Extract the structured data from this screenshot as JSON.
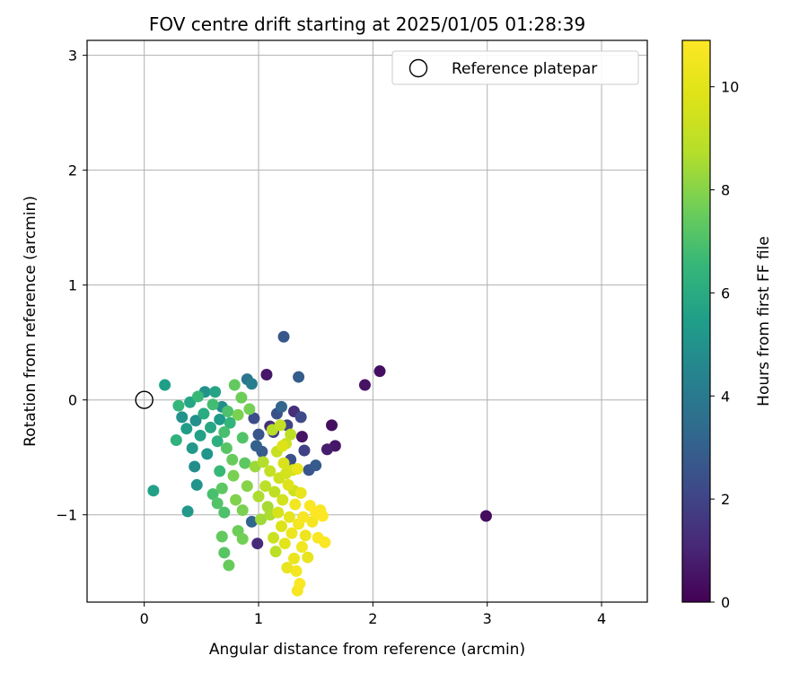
{
  "chart_data": {
    "type": "scatter",
    "title": "FOV centre drift starting at 2025/01/05 01:28:39",
    "xlabel": "Angular distance from reference (arcmin)",
    "ylabel": "Rotation from reference (arcmin)",
    "xlim": [
      -0.5,
      4.4
    ],
    "ylim": [
      -1.76,
      3.13
    ],
    "x_ticks": [
      0,
      1,
      2,
      3,
      4
    ],
    "y_ticks": [
      -1,
      0,
      1,
      2,
      3
    ],
    "grid": true,
    "legend": {
      "placement": "top-right",
      "entries": [
        "Reference platepar"
      ]
    },
    "reference_point": {
      "name": "Reference platepar",
      "x": 0.0,
      "y": 0.0,
      "marker": "open-circle"
    },
    "colorbar": {
      "label": "Hours from first FF file",
      "colormap": "viridis",
      "range": [
        0,
        10.9
      ],
      "ticks": [
        0,
        2,
        4,
        6,
        8,
        10
      ]
    },
    "points": [
      {
        "x": 0.18,
        "y": 0.13,
        "h": 5.5
      },
      {
        "x": 0.28,
        "y": -0.35,
        "h": 6.3
      },
      {
        "x": 0.3,
        "y": -0.05,
        "h": 6.5
      },
      {
        "x": 0.33,
        "y": -0.15,
        "h": 5.0
      },
      {
        "x": 0.37,
        "y": -0.25,
        "h": 5.4
      },
      {
        "x": 0.4,
        "y": -0.02,
        "h": 5.8
      },
      {
        "x": 0.42,
        "y": -0.42,
        "h": 5.2
      },
      {
        "x": 0.45,
        "y": -0.18,
        "h": 4.9
      },
      {
        "x": 0.47,
        "y": 0.03,
        "h": 6.6
      },
      {
        "x": 0.49,
        "y": -0.31,
        "h": 5.6
      },
      {
        "x": 0.52,
        "y": -0.12,
        "h": 6.0
      },
      {
        "x": 0.53,
        "y": 0.07,
        "h": 5.0
      },
      {
        "x": 0.55,
        "y": -0.47,
        "h": 5.1
      },
      {
        "x": 0.58,
        "y": -0.24,
        "h": 5.8
      },
      {
        "x": 0.6,
        "y": -0.04,
        "h": 6.8
      },
      {
        "x": 0.62,
        "y": 0.07,
        "h": 5.7
      },
      {
        "x": 0.64,
        "y": -0.36,
        "h": 6.2
      },
      {
        "x": 0.66,
        "y": -0.17,
        "h": 5.3
      },
      {
        "x": 0.68,
        "y": -0.06,
        "h": 4.8
      },
      {
        "x": 0.7,
        "y": -0.28,
        "h": 6.9
      },
      {
        "x": 0.72,
        "y": -0.42,
        "h": 7.2
      },
      {
        "x": 0.73,
        "y": -0.1,
        "h": 7.0
      },
      {
        "x": 0.75,
        "y": -0.2,
        "h": 6.4
      },
      {
        "x": 0.77,
        "y": -0.52,
        "h": 7.5
      },
      {
        "x": 0.79,
        "y": 0.13,
        "h": 7.4
      },
      {
        "x": 0.82,
        "y": -0.13,
        "h": 7.8
      },
      {
        "x": 0.85,
        "y": 0.02,
        "h": 7.6
      },
      {
        "x": 0.86,
        "y": -0.33,
        "h": 7.1
      },
      {
        "x": 0.88,
        "y": -0.55,
        "h": 7.3
      },
      {
        "x": 0.9,
        "y": 0.18,
        "h": 3.8
      },
      {
        "x": 0.92,
        "y": -0.08,
        "h": 7.7
      },
      {
        "x": 0.94,
        "y": 0.14,
        "h": 4.2
      },
      {
        "x": 0.96,
        "y": -0.16,
        "h": 2.3
      },
      {
        "x": 0.98,
        "y": -0.4,
        "h": 3.0
      },
      {
        "x": 1.0,
        "y": -0.3,
        "h": 2.6
      },
      {
        "x": 1.03,
        "y": -0.45,
        "h": 2.8
      },
      {
        "x": 1.07,
        "y": 0.22,
        "h": 0.6
      },
      {
        "x": 1.1,
        "y": -0.23,
        "h": 1.4
      },
      {
        "x": 1.13,
        "y": -0.28,
        "h": 1.8
      },
      {
        "x": 1.16,
        "y": -0.12,
        "h": 2.5
      },
      {
        "x": 1.2,
        "y": -0.06,
        "h": 3.2
      },
      {
        "x": 1.22,
        "y": 0.55,
        "h": 2.7
      },
      {
        "x": 1.25,
        "y": -0.22,
        "h": 2.0
      },
      {
        "x": 1.28,
        "y": -0.52,
        "h": 2.4
      },
      {
        "x": 1.31,
        "y": -0.1,
        "h": 1.3
      },
      {
        "x": 1.35,
        "y": 0.2,
        "h": 2.9
      },
      {
        "x": 1.37,
        "y": -0.15,
        "h": 2.2
      },
      {
        "x": 1.38,
        "y": -0.32,
        "h": 0.5
      },
      {
        "x": 1.4,
        "y": -0.44,
        "h": 1.9
      },
      {
        "x": 1.44,
        "y": -0.61,
        "h": 2.6
      },
      {
        "x": 1.5,
        "y": -0.57,
        "h": 2.8
      },
      {
        "x": 1.6,
        "y": -0.43,
        "h": 0.8
      },
      {
        "x": 1.64,
        "y": -0.22,
        "h": 0.4
      },
      {
        "x": 1.67,
        "y": -0.4,
        "h": 0.6
      },
      {
        "x": 1.93,
        "y": 0.13,
        "h": 0.5
      },
      {
        "x": 2.06,
        "y": 0.25,
        "h": 0.4
      },
      {
        "x": 2.99,
        "y": -1.01,
        "h": 0.3
      },
      {
        "x": 0.08,
        "y": -0.79,
        "h": 5.6
      },
      {
        "x": 0.38,
        "y": -0.97,
        "h": 5.2
      },
      {
        "x": 0.44,
        "y": -0.58,
        "h": 4.8
      },
      {
        "x": 0.46,
        "y": -0.74,
        "h": 5.1
      },
      {
        "x": 0.6,
        "y": -0.82,
        "h": 6.9
      },
      {
        "x": 0.64,
        "y": -0.9,
        "h": 7.1
      },
      {
        "x": 0.66,
        "y": -0.62,
        "h": 6.6
      },
      {
        "x": 0.68,
        "y": -0.77,
        "h": 7.3
      },
      {
        "x": 0.7,
        "y": -0.98,
        "h": 7.0
      },
      {
        "x": 0.68,
        "y": -1.19,
        "h": 7.4
      },
      {
        "x": 0.7,
        "y": -1.33,
        "h": 7.2
      },
      {
        "x": 0.74,
        "y": -1.44,
        "h": 7.5
      },
      {
        "x": 0.78,
        "y": -0.66,
        "h": 7.8
      },
      {
        "x": 0.8,
        "y": -0.87,
        "h": 7.9
      },
      {
        "x": 0.82,
        "y": -1.14,
        "h": 7.6
      },
      {
        "x": 0.86,
        "y": -1.21,
        "h": 7.7
      },
      {
        "x": 0.86,
        "y": -0.96,
        "h": 7.8
      },
      {
        "x": 0.9,
        "y": -0.75,
        "h": 8.0
      },
      {
        "x": 0.94,
        "y": -1.06,
        "h": 3.2
      },
      {
        "x": 0.97,
        "y": -0.58,
        "h": 8.3
      },
      {
        "x": 0.99,
        "y": -1.25,
        "h": 1.2
      },
      {
        "x": 1.0,
        "y": -0.84,
        "h": 8.6
      },
      {
        "x": 1.02,
        "y": -1.04,
        "h": 8.4
      },
      {
        "x": 1.04,
        "y": -0.54,
        "h": 8.7
      },
      {
        "x": 1.06,
        "y": -0.75,
        "h": 8.9
      },
      {
        "x": 1.08,
        "y": -0.93,
        "h": 8.5
      },
      {
        "x": 1.1,
        "y": -0.62,
        "h": 9.1
      },
      {
        "x": 1.12,
        "y": -0.26,
        "h": 8.8
      },
      {
        "x": 1.13,
        "y": -1.2,
        "h": 9.3
      },
      {
        "x": 1.14,
        "y": -0.8,
        "h": 9.0
      },
      {
        "x": 1.15,
        "y": -1.32,
        "h": 8.9
      },
      {
        "x": 1.16,
        "y": -0.45,
        "h": 9.2
      },
      {
        "x": 1.17,
        "y": -0.98,
        "h": 9.6
      },
      {
        "x": 1.18,
        "y": -0.68,
        "h": 9.4
      },
      {
        "x": 1.19,
        "y": -0.22,
        "h": 9.1
      },
      {
        "x": 1.2,
        "y": -1.1,
        "h": 9.8
      },
      {
        "x": 1.21,
        "y": -0.87,
        "h": 9.5
      },
      {
        "x": 1.22,
        "y": -0.55,
        "h": 9.7
      },
      {
        "x": 1.23,
        "y": -1.25,
        "h": 10.0
      },
      {
        "x": 1.24,
        "y": -0.38,
        "h": 9.3
      },
      {
        "x": 1.25,
        "y": -1.46,
        "h": 10.2
      },
      {
        "x": 1.26,
        "y": -0.74,
        "h": 9.9
      },
      {
        "x": 1.27,
        "y": -1.02,
        "h": 10.1
      },
      {
        "x": 1.28,
        "y": -0.3,
        "h": 9.0
      },
      {
        "x": 1.29,
        "y": -1.16,
        "h": 10.4
      },
      {
        "x": 1.3,
        "y": -0.61,
        "h": 9.6
      },
      {
        "x": 1.31,
        "y": -1.38,
        "h": 10.3
      },
      {
        "x": 1.32,
        "y": -0.91,
        "h": 10.5
      },
      {
        "x": 1.33,
        "y": -1.49,
        "h": 10.6
      },
      {
        "x": 1.34,
        "y": -1.66,
        "h": 10.7
      },
      {
        "x": 1.35,
        "y": -1.08,
        "h": 10.6
      },
      {
        "x": 1.36,
        "y": -1.6,
        "h": 10.8
      },
      {
        "x": 1.37,
        "y": -0.81,
        "h": 10.2
      },
      {
        "x": 1.38,
        "y": -1.28,
        "h": 10.5
      },
      {
        "x": 1.39,
        "y": -1.02,
        "h": 10.7
      },
      {
        "x": 1.41,
        "y": -1.18,
        "h": 10.4
      },
      {
        "x": 1.43,
        "y": -1.37,
        "h": 10.2
      },
      {
        "x": 1.45,
        "y": -0.92,
        "h": 10.8
      },
      {
        "x": 1.47,
        "y": -1.06,
        "h": 10.6
      },
      {
        "x": 1.5,
        "y": -0.98,
        "h": 10.9
      },
      {
        "x": 1.52,
        "y": -1.2,
        "h": 10.8
      },
      {
        "x": 1.54,
        "y": -0.96,
        "h": 10.7
      },
      {
        "x": 1.56,
        "y": -1.01,
        "h": 10.9
      },
      {
        "x": 1.58,
        "y": -1.24,
        "h": 10.8
      },
      {
        "x": 1.34,
        "y": -0.6,
        "h": 10.3
      },
      {
        "x": 1.24,
        "y": -0.64,
        "h": 9.5
      },
      {
        "x": 1.21,
        "y": -0.4,
        "h": 9.8
      },
      {
        "x": 1.31,
        "y": -0.79,
        "h": 9.4
      },
      {
        "x": 1.1,
        "y": -1.0,
        "h": 8.6
      }
    ]
  }
}
